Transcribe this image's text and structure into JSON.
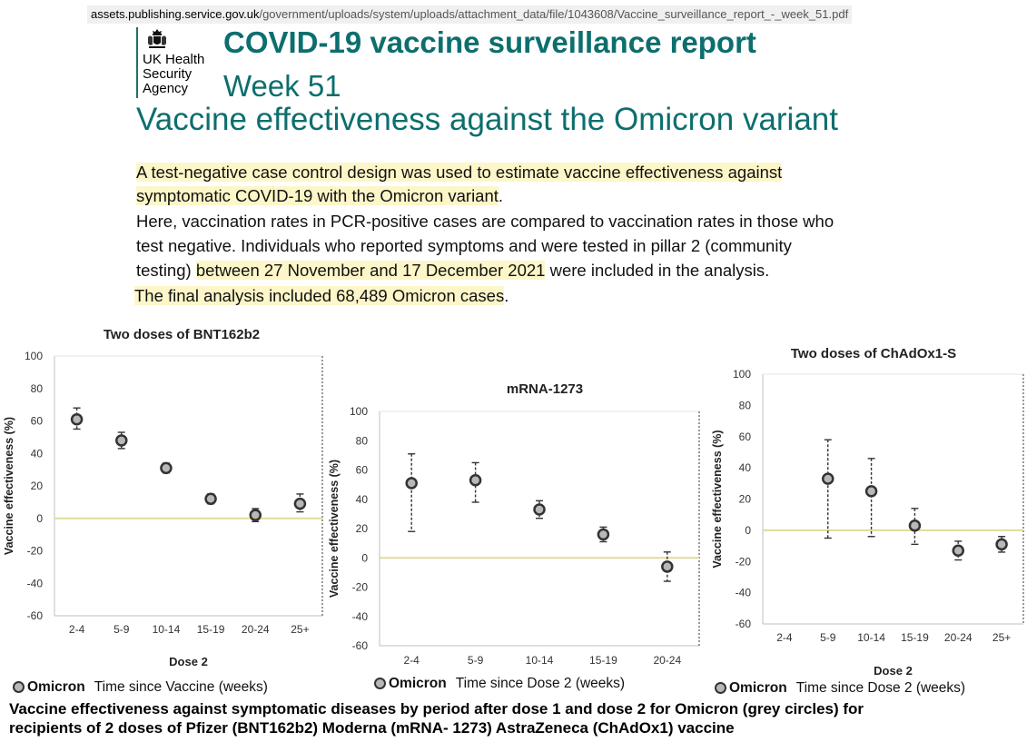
{
  "url": {
    "domain": "assets.publishing.service.gov.uk",
    "path": "/government/uploads/system/uploads/attachment_data/file/1043608/Vaccine_surveillance_report_-_week_51.pdf"
  },
  "logo": {
    "line1": "UK Health",
    "line2": "Security",
    "line3": "Agency"
  },
  "header": {
    "title": "COVID-19 vaccine surveillance report",
    "week": "Week 51",
    "subtitle": "Vaccine effectiveness against the Omicron variant"
  },
  "paragraphs": {
    "p1a": "A test-negative case control design was used to estimate vaccine effectiveness against",
    "p1b": "symptomatic COVID-19 with the Omicron variant",
    "p1b_end": ".",
    "p2a": "Here, vaccination rates in PCR-positive cases are compared to vaccination rates in those who",
    "p2b": "test negative. Individuals who reported symptoms and were tested in pillar 2 (community",
    "p2c_start": "testing) ",
    "p2c_hl": "between 27 November and 17 December 2021",
    "p2c_end": " were included in the analysis.",
    "p3_hl": "The final analysis included 68,489 Omicron cases",
    "p3_end": "."
  },
  "legend": {
    "series": "Omicron",
    "chart1_xlabel": "Time since Vaccine (weeks)",
    "chart2_xlabel": "Time since Dose 2 (weeks)",
    "chart3_xlabel": "Time since Dose 2 (weeks)"
  },
  "caption": {
    "line1": "Vaccine effectiveness against symptomatic diseases by period after dose 1 and dose 2 for  Omicron (grey circles) for",
    "line2": "recipients of 2 doses of  Pfizer (BNT162b2)  Moderna (mRNA- 1273)  AstraZeneca (ChAdOx1) vaccine"
  },
  "colors": {
    "teal": "#0d6e6e",
    "highlight": "#fdf6c8",
    "zero_line": "#e0dc9a",
    "marker_fill": "#b8b8b8",
    "marker_edge": "#333333"
  },
  "chart_data": [
    {
      "type": "scatter",
      "title": "Two doses of BNT162b2",
      "ylabel": "Vaccine effectiveness (%)",
      "xlabel": "Dose 2",
      "ylim": [
        -60,
        100
      ],
      "yticks": [
        100,
        80,
        60,
        40,
        20,
        0,
        -20,
        -40,
        -60
      ],
      "categories": [
        "2-4",
        "5-9",
        "10-14",
        "15-19",
        "20-24",
        "25+"
      ],
      "series": [
        {
          "name": "Omicron",
          "values": [
            61,
            48,
            31,
            12,
            2,
            9
          ],
          "lower": [
            55,
            43,
            28,
            9,
            -2,
            4
          ],
          "upper": [
            68,
            53,
            34,
            15,
            6,
            15
          ]
        }
      ]
    },
    {
      "type": "scatter",
      "title": "mRNA-1273",
      "ylabel": "Vaccine effectiveness (%)",
      "xlabel": "",
      "ylim": [
        -60,
        100
      ],
      "yticks": [
        100,
        80,
        60,
        40,
        20,
        0,
        -20,
        -40,
        -60
      ],
      "categories": [
        "2-4",
        "5-9",
        "10-14",
        "15-19",
        "20-24"
      ],
      "series": [
        {
          "name": "Omicron",
          "values": [
            51,
            53,
            33,
            16,
            -6
          ],
          "lower": [
            18,
            38,
            27,
            11,
            -16
          ],
          "upper": [
            71,
            65,
            39,
            21,
            4
          ]
        }
      ]
    },
    {
      "type": "scatter",
      "title": "Two doses of ChAdOx1-S",
      "ylabel": "Vaccine effectiveness (%)",
      "xlabel": "Dose 2",
      "ylim": [
        -60,
        100
      ],
      "yticks": [
        100,
        80,
        60,
        40,
        20,
        0,
        -20,
        -40,
        -60
      ],
      "categories": [
        "2-4",
        "5-9",
        "10-14",
        "15-19",
        "20-24",
        "25+"
      ],
      "series": [
        {
          "name": "Omicron",
          "values": [
            null,
            33,
            25,
            3,
            -13,
            -9
          ],
          "lower": [
            null,
            -5,
            -4,
            -9,
            -19,
            -14
          ],
          "upper": [
            null,
            58,
            46,
            14,
            -7,
            -4
          ]
        }
      ]
    }
  ]
}
